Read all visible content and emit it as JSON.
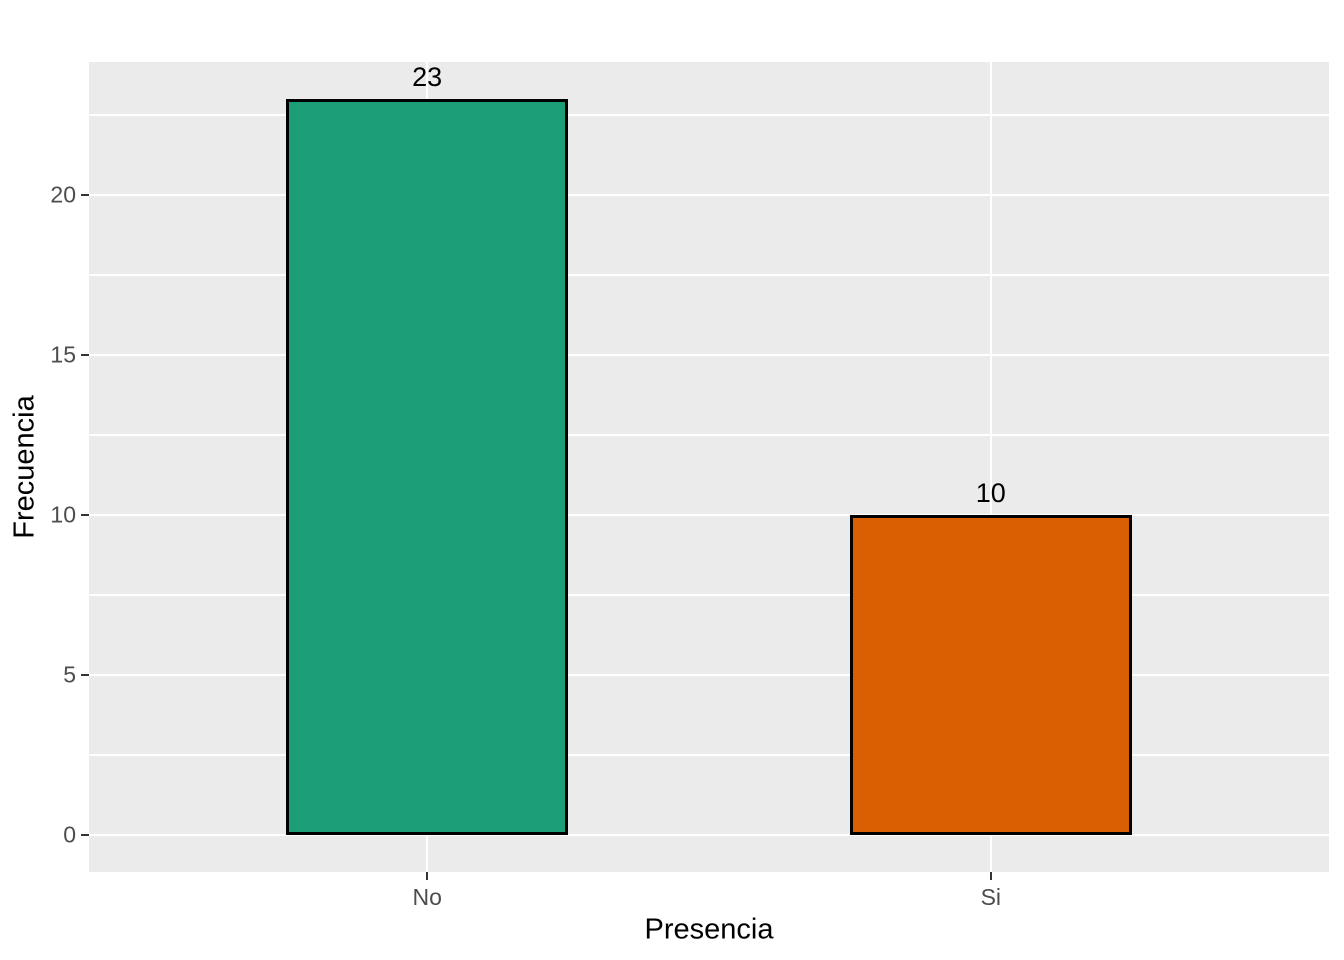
{
  "chart_data": {
    "type": "bar",
    "title": "",
    "xlabel": "Presencia",
    "ylabel": "Frecuencia",
    "categories": [
      "No",
      "Si"
    ],
    "values": [
      23,
      10
    ],
    "bar_labels": [
      "23",
      "10"
    ],
    "y_major_ticks": [
      0,
      5,
      10,
      15,
      20
    ],
    "y_major_tick_labels": [
      "0",
      "5",
      "10",
      "15",
      "20"
    ],
    "y_minor_ticks": [
      2.5,
      7.5,
      12.5,
      17.5,
      22.5
    ],
    "ylim": [
      -1.15,
      24.15
    ],
    "grid": true,
    "legend": "none",
    "colors": {
      "bar_fill": [
        "#1B9E77",
        "#D95F02"
      ],
      "bar_border": "#000000",
      "panel_background": "#EBEBEB",
      "gridline": "#FFFFFF",
      "axis_text": "#4D4D4D",
      "axis_title": "#000000",
      "tick_mark": "#333333",
      "figure_background": "#FFFFFF"
    }
  }
}
